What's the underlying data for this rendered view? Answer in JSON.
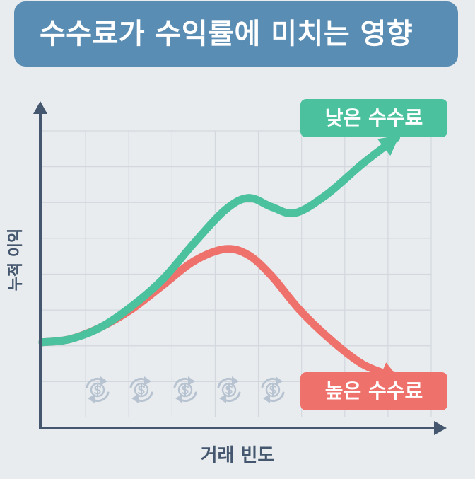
{
  "title": "수수료가 수익률에 미치는 영향",
  "colors": {
    "background": "#e9ecef",
    "title_banner": "#5a8db4",
    "low_fee": "#4bc29d",
    "high_fee": "#ef716c",
    "axis": "#44576e",
    "grid": "#d2d8de",
    "coin_icon": "#b7c3d0"
  },
  "chart_data": {
    "type": "line",
    "title": "수수료가 수익률에 미치는 영향",
    "xlabel": "거래 빈도",
    "ylabel": "누적 이익",
    "grid": true,
    "legend_placement": "right, next to each line end",
    "axis_ticks_printed": false,
    "series": [
      {
        "name": "낮은 수수료",
        "color": "#4bc29d",
        "end_marker": "arrow",
        "points": [
          [
            0,
            25
          ],
          [
            7,
            26
          ],
          [
            15,
            30
          ],
          [
            23,
            37
          ],
          [
            31,
            46
          ],
          [
            39,
            58
          ],
          [
            47,
            69
          ],
          [
            53,
            73
          ],
          [
            59,
            70
          ],
          [
            65,
            68
          ],
          [
            73,
            74
          ],
          [
            82,
            84
          ],
          [
            91,
            93
          ]
        ]
      },
      {
        "name": "높은 수수료",
        "color": "#ef716c",
        "end_marker": "arrow",
        "points": [
          [
            0,
            25
          ],
          [
            7,
            26
          ],
          [
            15,
            30
          ],
          [
            23,
            36
          ],
          [
            31,
            44
          ],
          [
            39,
            52
          ],
          [
            47,
            56
          ],
          [
            53,
            54
          ],
          [
            59,
            47
          ],
          [
            66,
            36
          ],
          [
            74,
            26
          ],
          [
            82,
            18
          ],
          [
            91,
            13
          ]
        ]
      }
    ],
    "xlim": [
      0,
      100
    ],
    "ylim": [
      0,
      100
    ]
  },
  "decorations": {
    "icon_name": "dollar-cycle-icon",
    "icon_count": 5
  }
}
